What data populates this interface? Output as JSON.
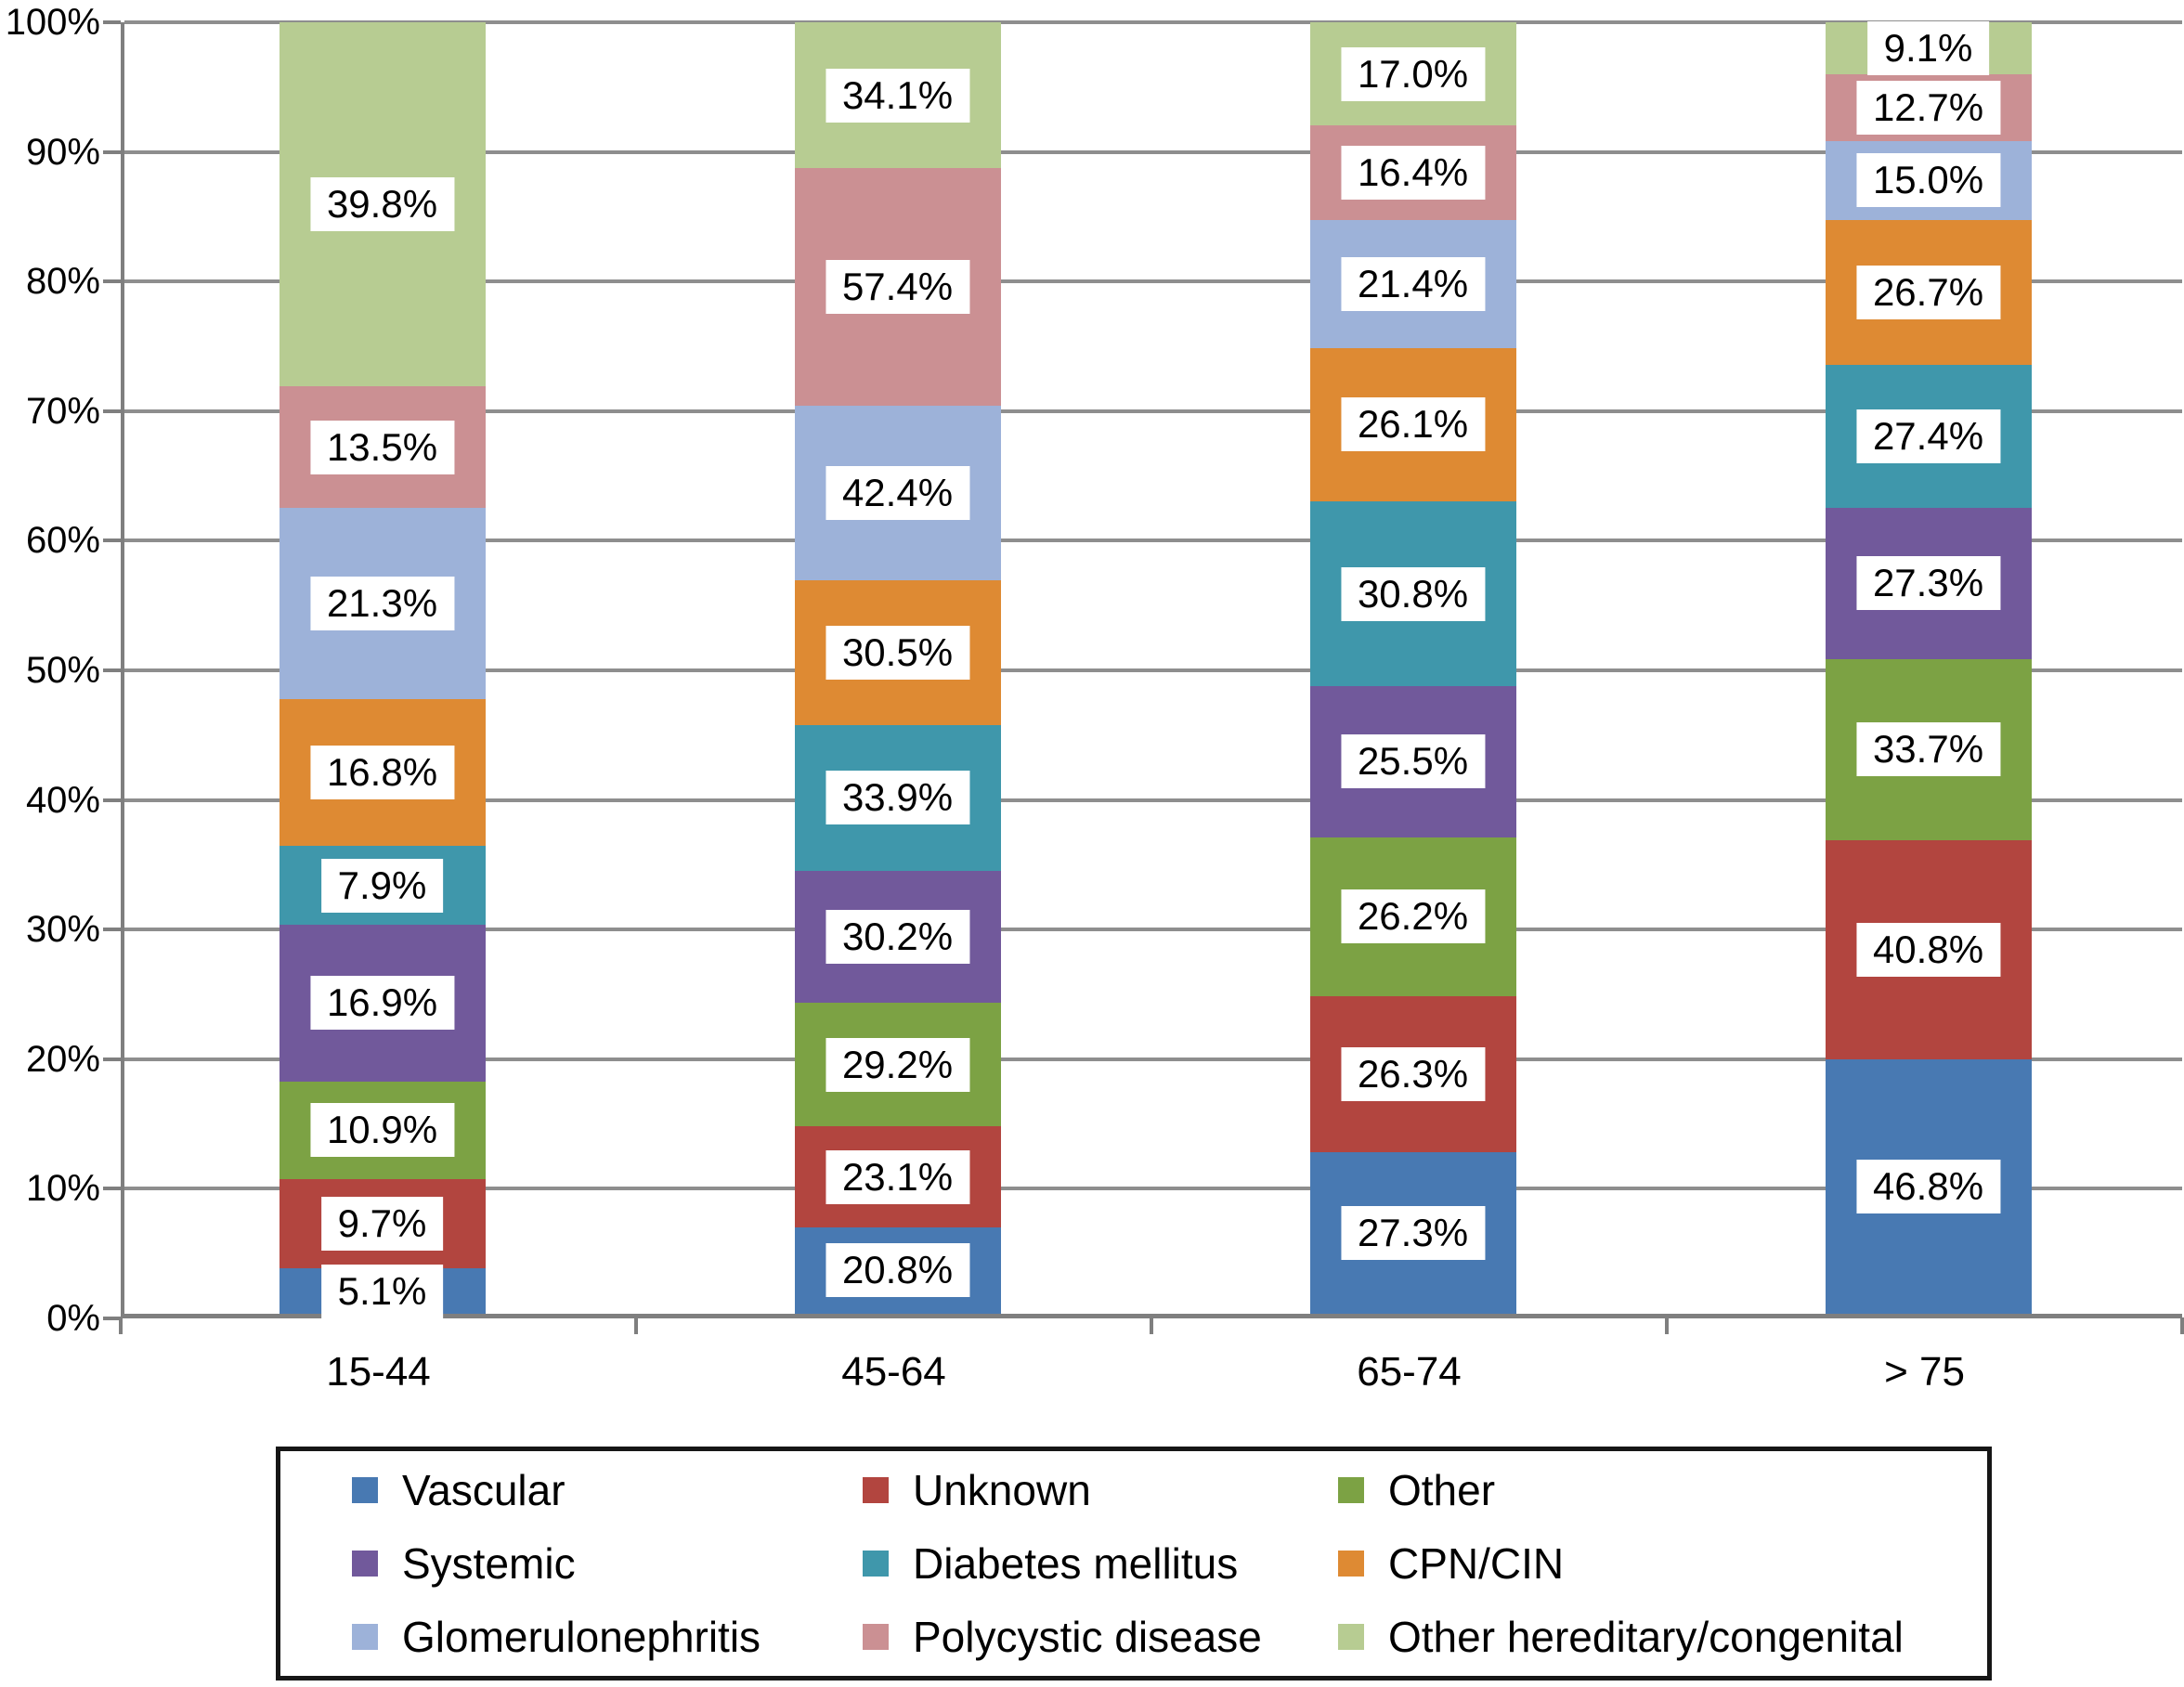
{
  "figure": {
    "background": "#ffffff"
  },
  "y_axis": {
    "tick_labels": [
      "0%",
      "10%",
      "20%",
      "30%",
      "40%",
      "50%",
      "60%",
      "70%",
      "80%",
      "90%",
      "100%"
    ],
    "gridline_color": "#8e8e8e",
    "axis_color": "#7f7f7f"
  },
  "x_axis": {
    "category_labels": [
      "15-44",
      "45-64",
      "65-74",
      "> 75"
    ]
  },
  "legend": {
    "position": "bottom",
    "columns": 3,
    "border_color": "#161616"
  },
  "chart_data": {
    "type": "bar",
    "subtype": "100%-stacked-column",
    "title": "",
    "xlabel": "",
    "ylabel": "",
    "ylim": [
      0,
      100
    ],
    "grid": "horizontal",
    "legend_position": "bottom",
    "categories": [
      "15-44",
      "45-64",
      "65-74",
      "> 75"
    ],
    "series": [
      {
        "name": "Vascular",
        "color": "#4879b2",
        "data_labels": [
          "5.1%",
          "20.8%",
          "27.3%",
          "46.8%"
        ],
        "plotted_segment_heights_pct": [
          3.5,
          6.7,
          12.5,
          19.7
        ]
      },
      {
        "name": "Unknown",
        "color": "#b2453f",
        "data_labels": [
          "9.7%",
          "23.1%",
          "26.3%",
          "40.8%"
        ],
        "plotted_segment_heights_pct": [
          6.9,
          7.8,
          12.1,
          17.0
        ]
      },
      {
        "name": "Other",
        "color": "#7ca244",
        "data_labels": [
          "10.9%",
          "29.2%",
          "26.2%",
          "33.7%"
        ],
        "plotted_segment_heights_pct": [
          7.6,
          9.6,
          12.3,
          14.0
        ]
      },
      {
        "name": "Systemic",
        "color": "#71599b",
        "data_labels": [
          "16.9%",
          "30.2%",
          "25.5%",
          "27.3%"
        ],
        "plotted_segment_heights_pct": [
          12.1,
          10.2,
          11.7,
          11.7
        ]
      },
      {
        "name": "Diabetes mellitus",
        "color": "#3f97ab",
        "data_labels": [
          "7.9%",
          "33.9%",
          "30.8%",
          "27.4%"
        ],
        "plotted_segment_heights_pct": [
          6.1,
          11.3,
          14.3,
          11.1
        ]
      },
      {
        "name": "CPN/CIN",
        "color": "#de8a33",
        "data_labels": [
          "16.8%",
          "30.5%",
          "26.1%",
          "26.7%"
        ],
        "plotted_segment_heights_pct": [
          11.4,
          11.2,
          11.9,
          11.2
        ]
      },
      {
        "name": "Glomerulonephritis",
        "color": "#9db2d9",
        "data_labels": [
          "21.3%",
          "42.4%",
          "21.4%",
          "15.0%"
        ],
        "plotted_segment_heights_pct": [
          14.8,
          13.5,
          9.9,
          6.1
        ]
      },
      {
        "name": "Polycystic disease",
        "color": "#cb9093",
        "data_labels": [
          "13.5%",
          "57.4%",
          "16.4%",
          "12.7%"
        ],
        "plotted_segment_heights_pct": [
          9.4,
          18.4,
          7.3,
          5.2
        ]
      },
      {
        "name": "Other hereditary/congenital",
        "color": "#b7cc92",
        "data_labels": [
          "39.8%",
          "34.1%",
          "17.0%",
          "9.1%"
        ],
        "plotted_segment_heights_pct": [
          28.2,
          11.3,
          8.0,
          4.0
        ]
      }
    ],
    "label_semantics": "White data labels printed on the segments sum to ~100% across the four age-group columns for each series; segment heights (estimated from the drawing) show the within-age-group composition and sum to 100% per column."
  }
}
